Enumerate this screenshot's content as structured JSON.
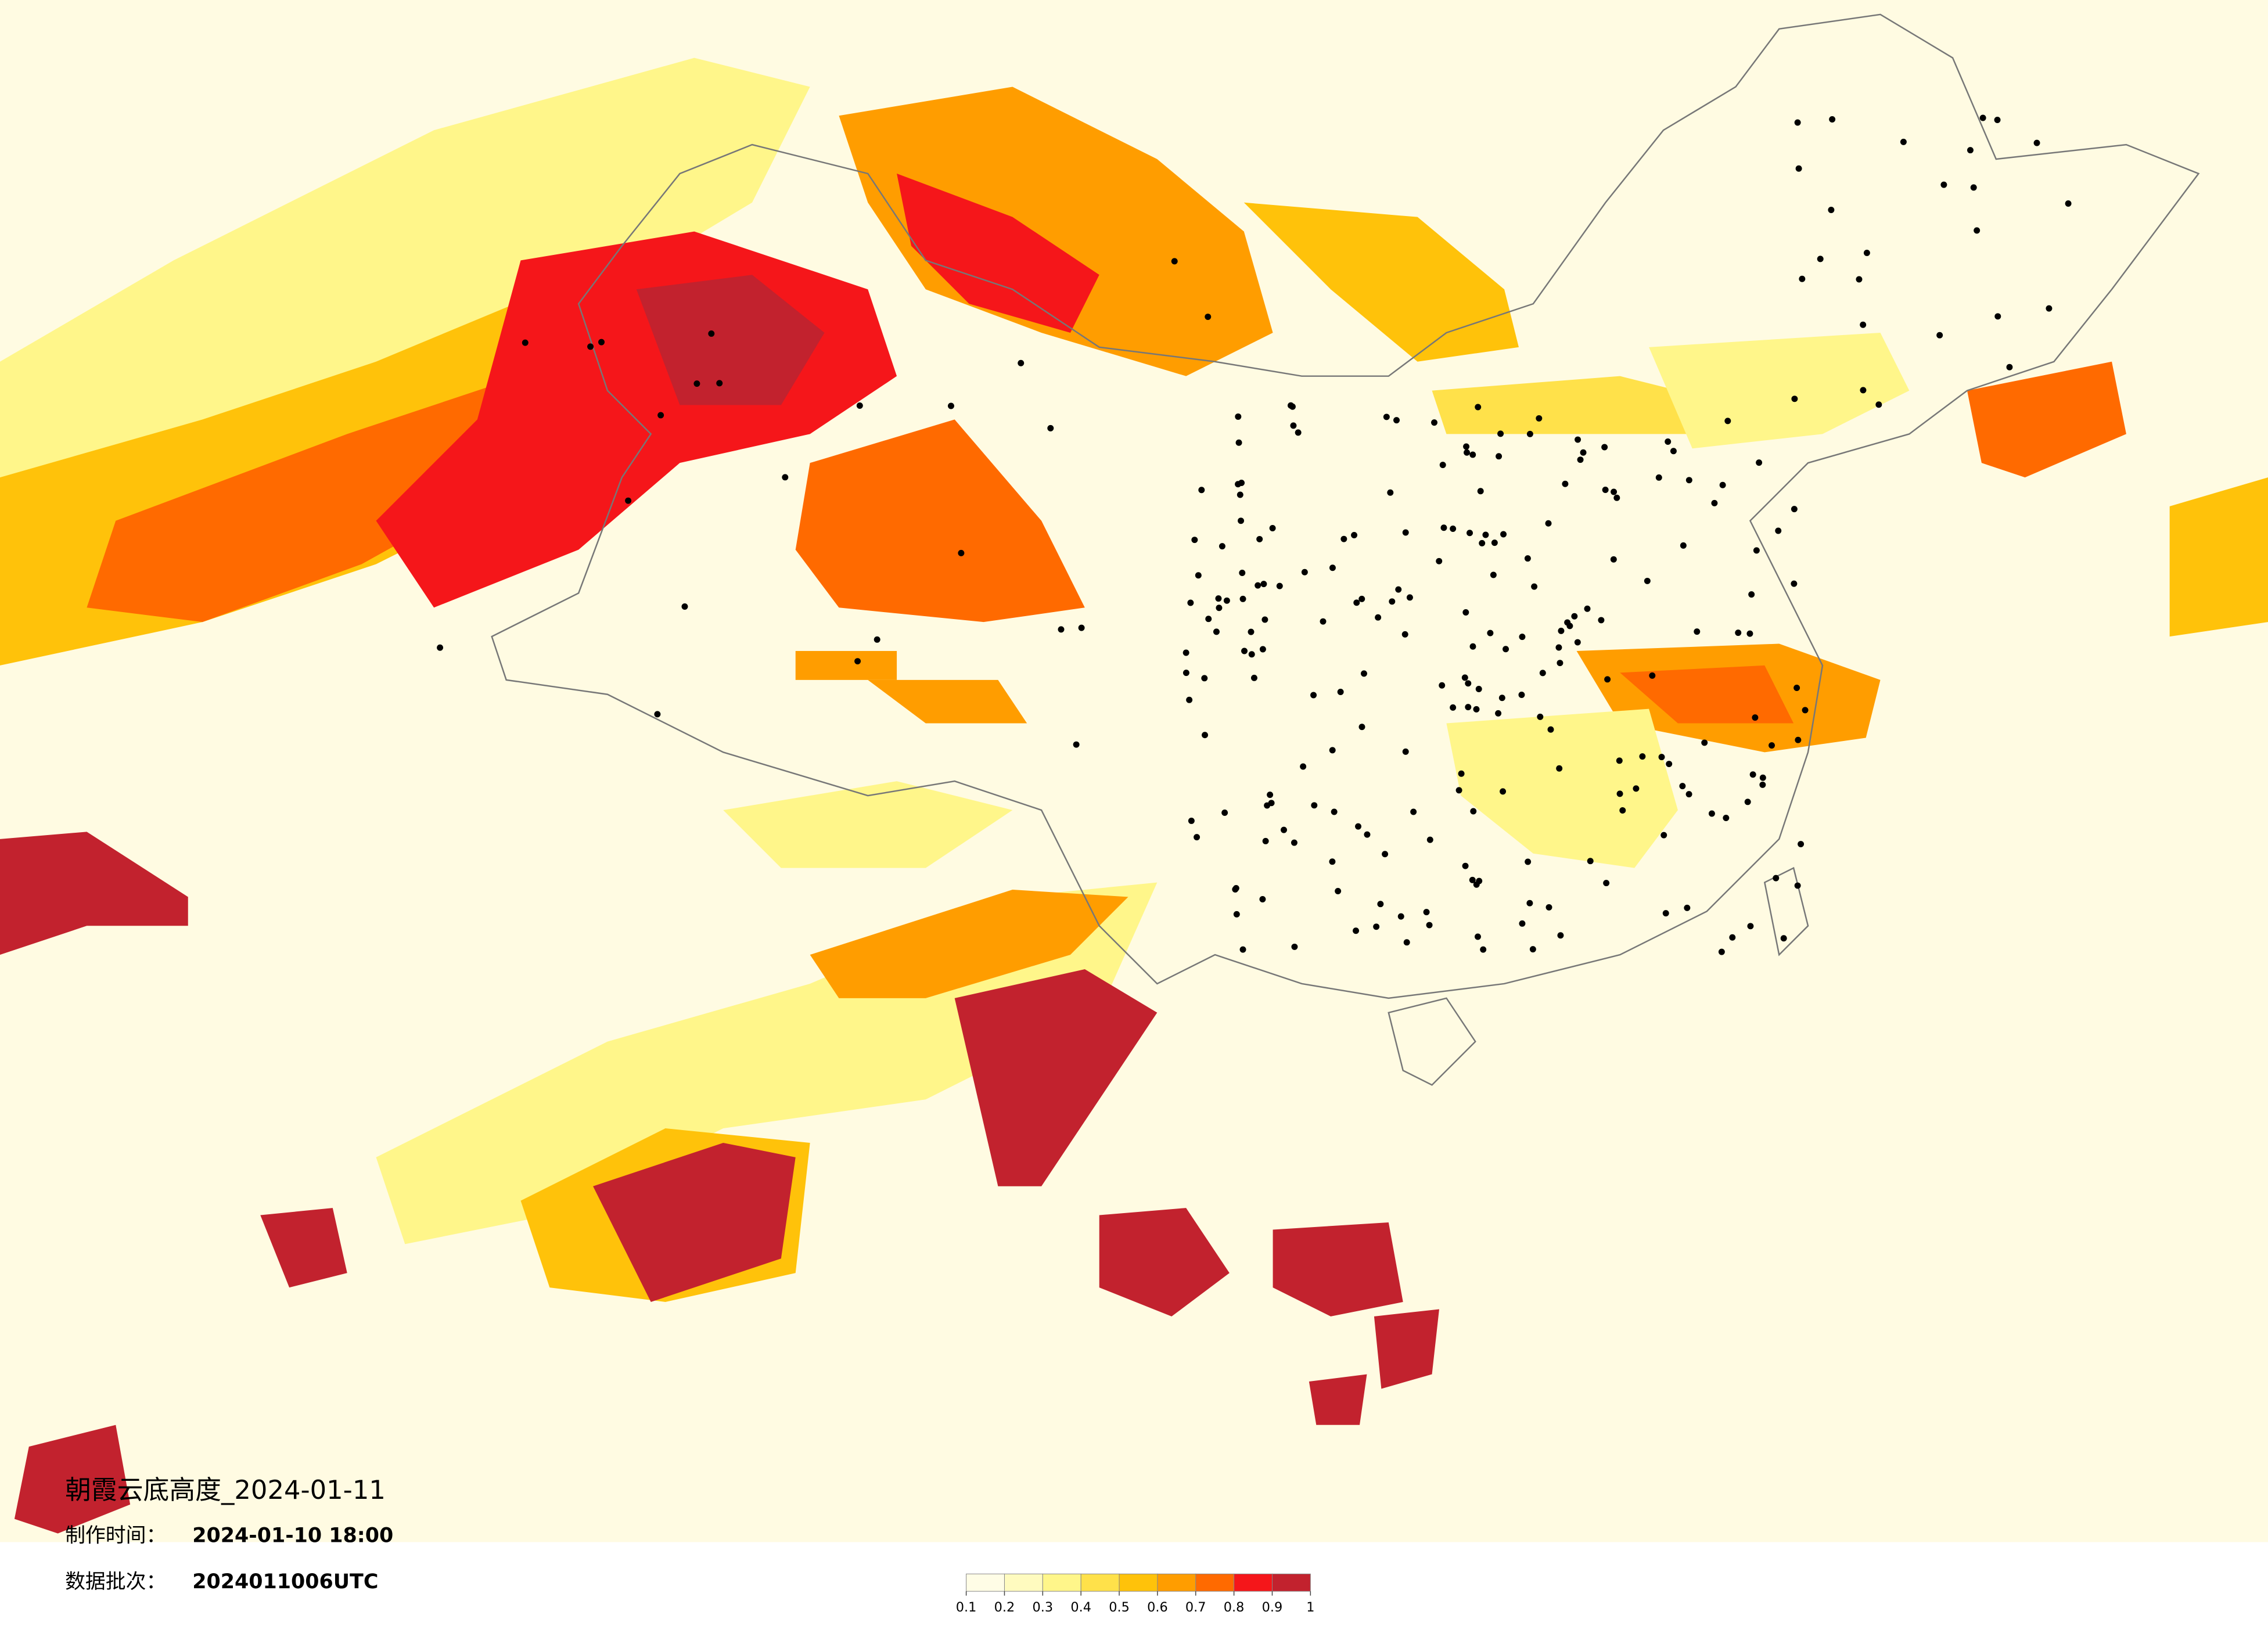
{
  "title": "朝霞云底高度_2024-01-11",
  "info": [
    {
      "label": "制作时间：",
      "value": "2024-01-10 18:00"
    },
    {
      "label": "数据批次：",
      "value": "2024011006UTC"
    }
  ],
  "legend": {
    "ticks": [
      0.1,
      0.2,
      0.3,
      0.4,
      0.5,
      0.6,
      0.7,
      0.8,
      0.9,
      1
    ],
    "colors": [
      "#fffde6",
      "#fffbbf",
      "#fff68a",
      "#ffe14a",
      "#ffc20a",
      "#ff9d00",
      "#ff6a00",
      "#f5161a",
      "#c2222e"
    ]
  }
}
